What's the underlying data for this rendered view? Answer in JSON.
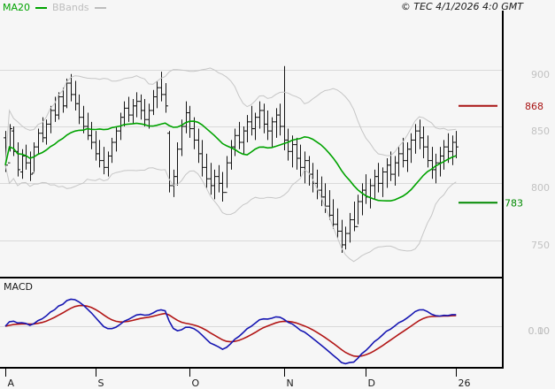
{
  "header": {
    "copyright": "© TEC 4/1/2026 4:0 GMT"
  },
  "legend": {
    "ma20": "MA20",
    "bbands": "BBands",
    "macd": "MACD"
  },
  "colors": {
    "background": "#f6f6f6",
    "grid": "#d9d9d9",
    "axis_label_gray": "#c2c2c2",
    "bollinger": "#c6c6c6",
    "ma20": "#00a300",
    "bbands_legend": "#bdbdbd",
    "candle": "#141414",
    "resistance": "#a81414",
    "support": "#008a00",
    "macd_line": "#1616b2",
    "macd_signal": "#b21616",
    "border": "#000000",
    "month_label": "#1a1a1a"
  },
  "chart_data": {
    "type": "ohlc",
    "description": "Daily OHLC price chart with MA20 and Bollinger Bands, MACD sub-panel",
    "price_panel": {
      "ylim": [
        718,
        961
      ],
      "gridlines": [
        {
          "value": 900,
          "label": "900"
        },
        {
          "value": 850,
          "label": "850"
        },
        {
          "value": 800,
          "label": "800"
        },
        {
          "value": 750,
          "label": "750"
        }
      ],
      "resistance": {
        "value": 868,
        "label": "868"
      },
      "support": {
        "value": 783,
        "label": "783"
      },
      "indicators": {
        "ma_period": 20,
        "bb_period": 20,
        "bb_stdev": 2
      },
      "candle_format": "high,low,open,close",
      "candles": [
        [
          846,
          810,
          840,
          816
        ],
        [
          852,
          828,
          818,
          848
        ],
        [
          850,
          824,
          846,
          828
        ],
        [
          836,
          806,
          828,
          812
        ],
        [
          830,
          804,
          810,
          824
        ],
        [
          834,
          812,
          824,
          818
        ],
        [
          828,
          802,
          818,
          808
        ],
        [
          836,
          810,
          809,
          832
        ],
        [
          848,
          826,
          832,
          844
        ],
        [
          858,
          836,
          844,
          840
        ],
        [
          856,
          834,
          840,
          852
        ],
        [
          868,
          844,
          852,
          864
        ],
        [
          876,
          854,
          864,
          860
        ],
        [
          880,
          856,
          860,
          876
        ],
        [
          884,
          862,
          876,
          868
        ],
        [
          892,
          866,
          868,
          888
        ],
        [
          896,
          872,
          888,
          878
        ],
        [
          890,
          864,
          878,
          870
        ],
        [
          878,
          852,
          870,
          858
        ],
        [
          868,
          844,
          858,
          850
        ],
        [
          862,
          838,
          850,
          842
        ],
        [
          854,
          830,
          842,
          836
        ],
        [
          846,
          820,
          836,
          826
        ],
        [
          838,
          814,
          826,
          820
        ],
        [
          832,
          808,
          820,
          814
        ],
        [
          828,
          806,
          814,
          824
        ],
        [
          840,
          818,
          824,
          836
        ],
        [
          850,
          828,
          836,
          846
        ],
        [
          862,
          838,
          846,
          858
        ],
        [
          872,
          850,
          858,
          866
        ],
        [
          876,
          854,
          866,
          860
        ],
        [
          874,
          852,
          860,
          868
        ],
        [
          880,
          858,
          868,
          872
        ],
        [
          878,
          856,
          872,
          864
        ],
        [
          874,
          850,
          864,
          856
        ],
        [
          870,
          848,
          856,
          864
        ],
        [
          882,
          860,
          864,
          876
        ],
        [
          890,
          866,
          876,
          884
        ],
        [
          898,
          872,
          884,
          878
        ],
        [
          888,
          862,
          878,
          868
        ],
        [
          846,
          792,
          844,
          798
        ],
        [
          812,
          788,
          798,
          806
        ],
        [
          836,
          798,
          806,
          830
        ],
        [
          856,
          824,
          830,
          850
        ],
        [
          872,
          844,
          850,
          862
        ],
        [
          868,
          840,
          862,
          848
        ],
        [
          858,
          830,
          848,
          838
        ],
        [
          848,
          818,
          838,
          826
        ],
        [
          838,
          806,
          826,
          814
        ],
        [
          826,
          796,
          814,
          804
        ],
        [
          818,
          790,
          804,
          798
        ],
        [
          812,
          786,
          798,
          806
        ],
        [
          816,
          792,
          806,
          800
        ],
        [
          810,
          784,
          800,
          792
        ],
        [
          824,
          796,
          792,
          818
        ],
        [
          838,
          812,
          818,
          832
        ],
        [
          848,
          824,
          832,
          842
        ],
        [
          854,
          830,
          842,
          836
        ],
        [
          850,
          826,
          836,
          846
        ],
        [
          860,
          836,
          846,
          854
        ],
        [
          868,
          842,
          854,
          848
        ],
        [
          862,
          838,
          848,
          858
        ],
        [
          872,
          848,
          858,
          864
        ],
        [
          870,
          844,
          864,
          852
        ],
        [
          864,
          838,
          852,
          846
        ],
        [
          858,
          832,
          846,
          854
        ],
        [
          866,
          840,
          854,
          860
        ],
        [
          870,
          842,
          860,
          850
        ],
        [
          903,
          829,
          850,
          838
        ],
        [
          848,
          820,
          838,
          828
        ],
        [
          842,
          814,
          828,
          834
        ],
        [
          840,
          812,
          834,
          822
        ],
        [
          834,
          806,
          822,
          814
        ],
        [
          828,
          800,
          814,
          820
        ],
        [
          824,
          798,
          820,
          808
        ],
        [
          818,
          792,
          808,
          800
        ],
        [
          812,
          786,
          800,
          794
        ],
        [
          806,
          780,
          794,
          788
        ],
        [
          800,
          774,
          788,
          780
        ],
        [
          794,
          768,
          780,
          772
        ],
        [
          786,
          760,
          772,
          764
        ],
        [
          778,
          752,
          764,
          758
        ],
        [
          768,
          739,
          758,
          746
        ],
        [
          762,
          742,
          746,
          756
        ],
        [
          774,
          748,
          756,
          768
        ],
        [
          784,
          758,
          768,
          762
        ],
        [
          790,
          764,
          762,
          784
        ],
        [
          800,
          772,
          784,
          794
        ],
        [
          808,
          782,
          794,
          788
        ],
        [
          804,
          778,
          788,
          798
        ],
        [
          812,
          786,
          798,
          806
        ],
        [
          818,
          792,
          806,
          800
        ],
        [
          814,
          788,
          800,
          810
        ],
        [
          822,
          796,
          810,
          816
        ],
        [
          828,
          802,
          816,
          808
        ],
        [
          824,
          798,
          808,
          818
        ],
        [
          832,
          806,
          818,
          826
        ],
        [
          840,
          814,
          826,
          820
        ],
        [
          836,
          810,
          820,
          830
        ],
        [
          844,
          818,
          830,
          838
        ],
        [
          852,
          826,
          838,
          846
        ],
        [
          856,
          830,
          846,
          840
        ],
        [
          850,
          822,
          840,
          832
        ],
        [
          842,
          814,
          832,
          820
        ],
        [
          832,
          804,
          820,
          812
        ],
        [
          826,
          800,
          812,
          818
        ],
        [
          832,
          806,
          818,
          824
        ],
        [
          838,
          812,
          824,
          832
        ],
        [
          844,
          818,
          832,
          828
        ],
        [
          842,
          816,
          828,
          836
        ],
        [
          846,
          822,
          836,
          832
        ]
      ]
    },
    "macd_panel": {
      "params": {
        "fast": 12,
        "slow": 26,
        "signal": 9
      },
      "axis_labels": [
        {
          "value": 0.1,
          "label": "0.10"
        },
        {
          "value": 0.0,
          "label": "0.00"
        }
      ],
      "zero_gridline": 0.0,
      "peak_value": 0.163
    },
    "x_axis": {
      "ticks": [
        {
          "day": 0,
          "label": "A"
        },
        {
          "day": 22,
          "label": "S"
        },
        {
          "day": 45,
          "label": "O"
        },
        {
          "day": 68,
          "label": "N"
        },
        {
          "day": 88,
          "label": "D"
        },
        {
          "day": 110,
          "label": "26"
        }
      ]
    }
  }
}
